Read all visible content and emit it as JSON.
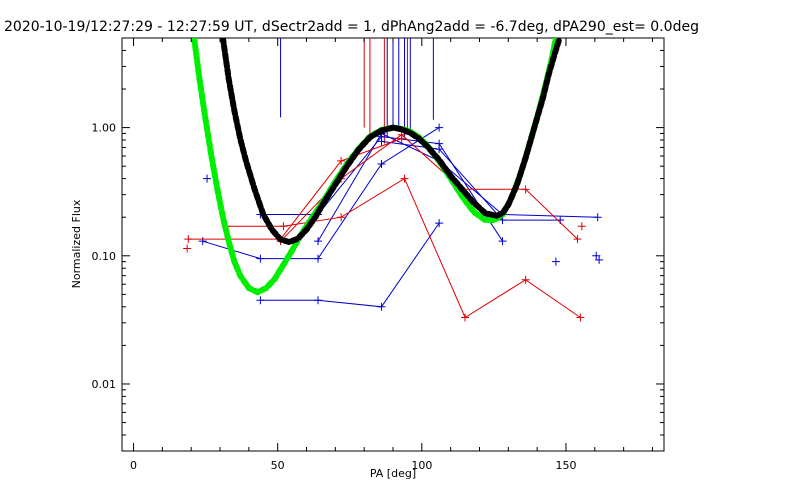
{
  "chart_data": {
    "type": "line",
    "title": "2020-10-19/12:27:29 - 12:27:59 UT, dSectr2add = 1, dPhAng2add = -6.7deg, dPA290_est=  0.0deg",
    "xlabel": "PA [deg]",
    "ylabel": "Normalized Flux",
    "xlim": [
      -4,
      184
    ],
    "ylim": [
      0.003,
      5.0
    ],
    "yscale": "log",
    "x_ticks": [
      0,
      50,
      100,
      150
    ],
    "y_ticks": [
      0.01,
      0.1,
      1.0
    ],
    "y_tick_labels": [
      "0.01",
      "0.10",
      "1.00"
    ],
    "colors": {
      "blue": "#0000cc",
      "red": "#dd0000",
      "black": "#000000",
      "green": "#00ee00"
    },
    "vlines": [
      {
        "x": 51,
        "ymin": 1.2,
        "color": "blue"
      },
      {
        "x": 80,
        "ymin": 1.0,
        "color": "red"
      },
      {
        "x": 82,
        "ymin": 0.85,
        "color": "red"
      },
      {
        "x": 87,
        "ymin": 0.75,
        "color": "red"
      },
      {
        "x": 88,
        "ymin": 0.85,
        "color": "blue"
      },
      {
        "x": 90,
        "ymin": 1.05,
        "color": "blue"
      },
      {
        "x": 92,
        "ymin": 0.95,
        "color": "blue"
      },
      {
        "x": 94,
        "ymin": 0.85,
        "color": "blue"
      },
      {
        "x": 95,
        "ymin": 0.9,
        "color": "red"
      },
      {
        "x": 96,
        "ymin": 0.95,
        "color": "blue"
      },
      {
        "x": 104,
        "ymin": 1.15,
        "color": "blue"
      }
    ],
    "series": [
      {
        "name": "blue-1",
        "color": "blue",
        "x": [
          24,
          44,
          64,
          86,
          106
        ],
        "y": [
          0.13,
          0.095,
          0.095,
          0.52,
          1.0
        ]
      },
      {
        "name": "blue-2",
        "color": "blue",
        "x": [
          44,
          64,
          86,
          106
        ],
        "y": [
          0.045,
          0.045,
          0.04,
          0.18
        ]
      },
      {
        "name": "blue-3",
        "color": "blue",
        "x": [
          44,
          64,
          86,
          106,
          128
        ],
        "y": [
          0.21,
          0.21,
          0.85,
          0.75,
          0.13
        ]
      },
      {
        "name": "blue-4",
        "color": "blue",
        "x": [
          64,
          86,
          106,
          128,
          161
        ],
        "y": [
          0.13,
          0.9,
          0.55,
          0.21,
          0.2
        ]
      },
      {
        "name": "blue-5",
        "color": "blue",
        "x": [
          86,
          106,
          128,
          148
        ],
        "y": [
          0.78,
          0.68,
          0.19,
          0.19
        ]
      },
      {
        "name": "red-1",
        "color": "red",
        "x": [
          19,
          51,
          72,
          93
        ],
        "y": [
          0.135,
          0.135,
          0.55,
          0.82
        ]
      },
      {
        "name": "red-2",
        "color": "red",
        "x": [
          32,
          52,
          72,
          94,
          115,
          136,
          155
        ],
        "y": [
          0.17,
          0.17,
          0.2,
          0.4,
          0.033,
          0.065,
          0.033
        ]
      },
      {
        "name": "red-3",
        "color": "red",
        "x": [
          51,
          72,
          93,
          114,
          136,
          154
        ],
        "y": [
          0.13,
          0.4,
          0.88,
          0.33,
          0.33,
          0.135
        ]
      }
    ],
    "scatter": [
      {
        "x": 18.6,
        "y": 0.114,
        "color": "red"
      },
      {
        "x": 25.5,
        "y": 0.4,
        "color": "blue"
      },
      {
        "x": 146.5,
        "y": 0.09,
        "color": "blue"
      },
      {
        "x": 155.5,
        "y": 0.17,
        "color": "red"
      },
      {
        "x": 160.5,
        "y": 0.1,
        "color": "blue"
      },
      {
        "x": 161.5,
        "y": 0.093,
        "color": "blue"
      }
    ],
    "fit_black": {
      "name": "fit-black",
      "color": "black",
      "x": [
        31,
        33,
        35,
        37,
        39,
        42,
        45,
        48,
        51,
        54,
        57,
        60,
        63,
        66,
        70,
        74,
        78,
        82,
        86,
        90,
        93,
        96,
        99,
        102,
        106,
        110,
        114,
        118,
        122,
        126,
        128,
        130,
        133,
        136,
        139,
        142,
        144,
        146,
        147.8
      ],
      "y": [
        5.0,
        2.4,
        1.35,
        0.82,
        0.55,
        0.33,
        0.21,
        0.16,
        0.134,
        0.128,
        0.136,
        0.16,
        0.2,
        0.26,
        0.36,
        0.5,
        0.67,
        0.84,
        0.95,
        1.0,
        0.97,
        0.91,
        0.82,
        0.71,
        0.56,
        0.42,
        0.33,
        0.26,
        0.215,
        0.205,
        0.215,
        0.25,
        0.36,
        0.58,
        1.0,
        1.7,
        2.6,
        3.7,
        5.0
      ]
    },
    "fit_green": {
      "name": "fit-green",
      "color": "green",
      "x": [
        21,
        23,
        25,
        27,
        29,
        31,
        33,
        35,
        37,
        40,
        43,
        46,
        49,
        52,
        55,
        58,
        62,
        66,
        70,
        74,
        78,
        82,
        86,
        90,
        93,
        96,
        99,
        102,
        106,
        110,
        114,
        118,
        122,
        125,
        128,
        131,
        134,
        137,
        140,
        143,
        145,
        146.5
      ],
      "y": [
        5.0,
        2.3,
        1.15,
        0.6,
        0.34,
        0.2,
        0.13,
        0.09,
        0.07,
        0.056,
        0.052,
        0.056,
        0.066,
        0.085,
        0.11,
        0.145,
        0.2,
        0.27,
        0.38,
        0.52,
        0.68,
        0.85,
        0.96,
        1.0,
        0.98,
        0.93,
        0.84,
        0.72,
        0.55,
        0.4,
        0.29,
        0.22,
        0.19,
        0.19,
        0.21,
        0.28,
        0.42,
        0.7,
        1.2,
        2.2,
        3.4,
        5.0
      ]
    }
  }
}
